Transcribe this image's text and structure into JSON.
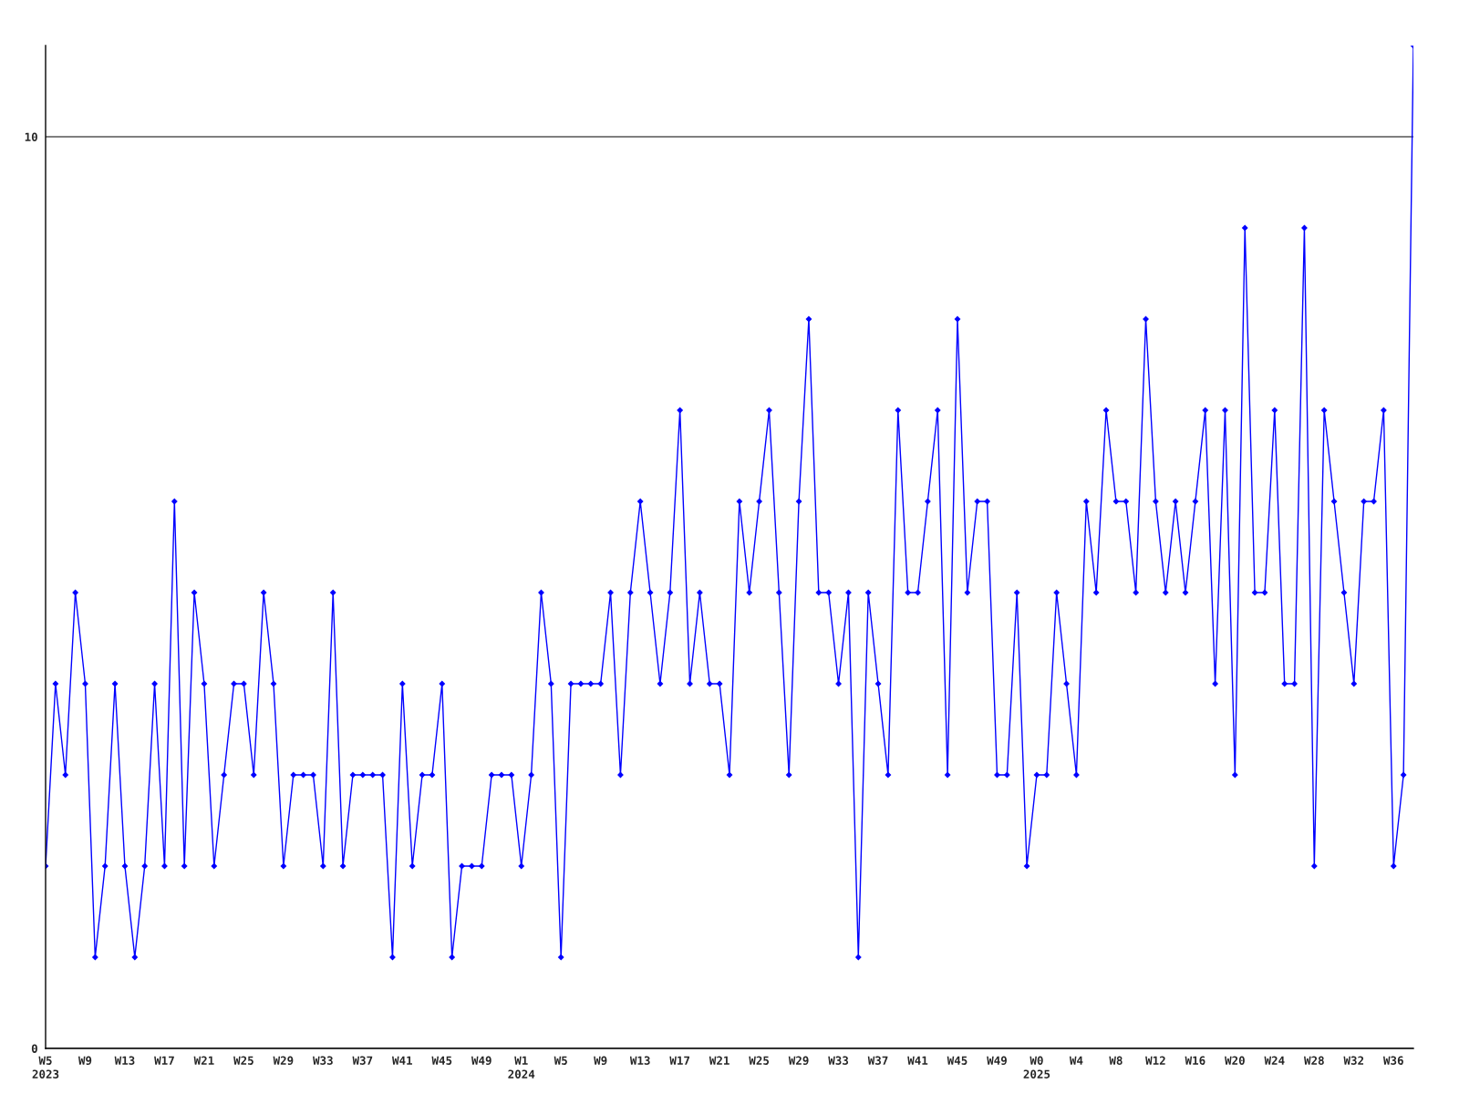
{
  "chart_data": {
    "type": "line",
    "categories": [
      "W5\n2023",
      null,
      null,
      null,
      "W9",
      null,
      null,
      null,
      "W13",
      null,
      null,
      null,
      "W17",
      null,
      null,
      null,
      "W21",
      null,
      null,
      null,
      "W25",
      null,
      null,
      null,
      "W29",
      null,
      null,
      null,
      "W33",
      null,
      null,
      null,
      "W37",
      null,
      null,
      null,
      "W41",
      null,
      null,
      null,
      "W45",
      null,
      null,
      null,
      "W49",
      null,
      null,
      null,
      "W1\n2024",
      null,
      null,
      null,
      "W5",
      null,
      null,
      null,
      "W9",
      null,
      null,
      null,
      "W13",
      null,
      null,
      null,
      "W17",
      null,
      null,
      null,
      "W21",
      null,
      null,
      null,
      "W25",
      null,
      null,
      null,
      "W29",
      null,
      null,
      null,
      "W33",
      null,
      null,
      null,
      "W37",
      null,
      null,
      null,
      "W41",
      null,
      null,
      null,
      "W45",
      null,
      null,
      null,
      "W49",
      null,
      null,
      null,
      "W0\n2025",
      null,
      null,
      null,
      "W4",
      null,
      null,
      null,
      "W8",
      null,
      null,
      null,
      "W12",
      null,
      null,
      null,
      "W16",
      null,
      null,
      null,
      "W20",
      null,
      null,
      null,
      "W24",
      null,
      null,
      null,
      "W28",
      null,
      null,
      null,
      "W32",
      null,
      null,
      null,
      "W36",
      null,
      null
    ],
    "series": [
      {
        "color": "#0000ff",
        "values": [
          2,
          4,
          3,
          5,
          4,
          1,
          2,
          4,
          2,
          1,
          2,
          4,
          2,
          6,
          2,
          5,
          4,
          2,
          3,
          4,
          4,
          3,
          5,
          4,
          2,
          3,
          3,
          3,
          2,
          5,
          2,
          3,
          3,
          3,
          3,
          1,
          4,
          2,
          3,
          3,
          4,
          1,
          2,
          2,
          2,
          3,
          3,
          3,
          2,
          3,
          5,
          4,
          1,
          4,
          4,
          4,
          4,
          5,
          3,
          5,
          6,
          5,
          4,
          5,
          7,
          4,
          5,
          4,
          4,
          3,
          6,
          5,
          6,
          7,
          5,
          3,
          6,
          8,
          5,
          5,
          4,
          5,
          1,
          5,
          4,
          3,
          7,
          5,
          5,
          6,
          7,
          3,
          8,
          5,
          6,
          6,
          3,
          3,
          5,
          2,
          3,
          3,
          5,
          4,
          3,
          6,
          5,
          7,
          6,
          6,
          5,
          8,
          6,
          5,
          6,
          5,
          6,
          7,
          4,
          7,
          3,
          9,
          5,
          5,
          7,
          4,
          4,
          9,
          2,
          7,
          6,
          5,
          4,
          6,
          6,
          7,
          2,
          3,
          11
        ]
      }
    ],
    "ylim": [
      0,
      11
    ],
    "yticks": [
      0,
      10
    ],
    "grid": "y",
    "marker": "diamond",
    "line_style": "solid"
  }
}
